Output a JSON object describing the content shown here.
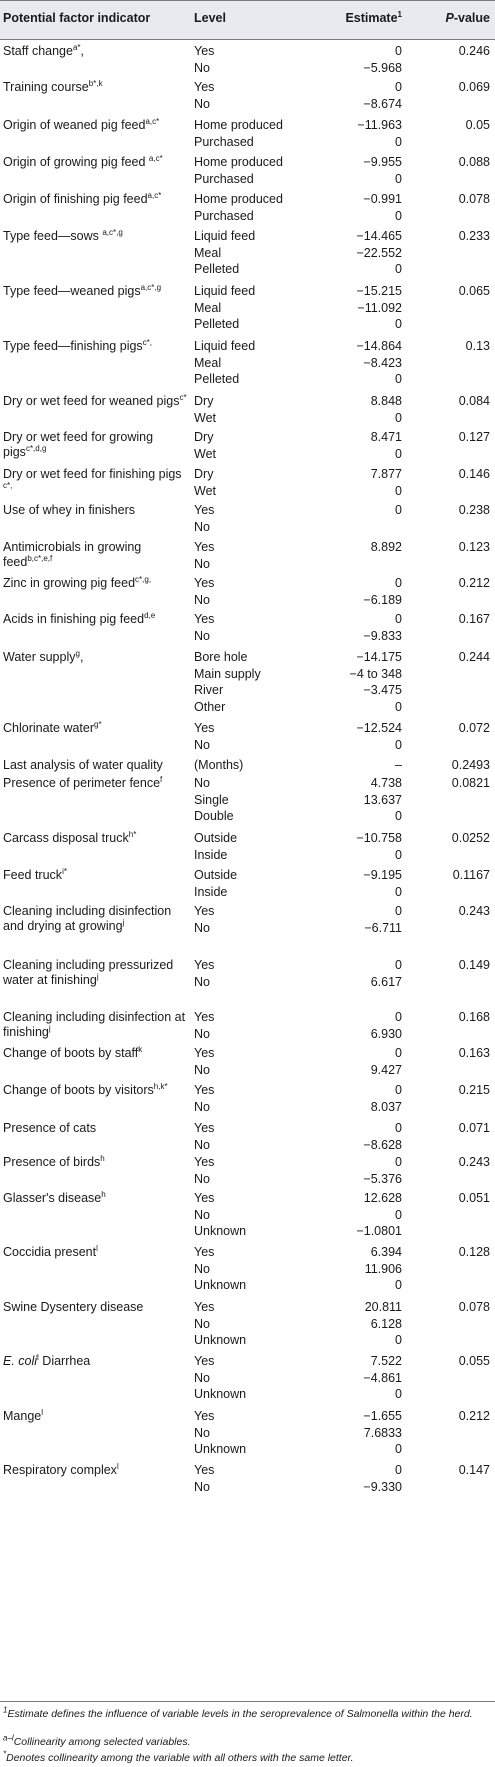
{
  "table": {
    "headers": {
      "factor": "Potential factor indicator",
      "level": "Level",
      "estimate": "Estimate",
      "estimate_sup": "1",
      "p_italic": "P",
      "p_rest": "-value"
    },
    "rows": [
      {
        "factor": "Staff change",
        "sup": "a*",
        "after": ",",
        "levels": [
          "Yes",
          "No"
        ],
        "estimates": [
          "0",
          "−5.968"
        ],
        "p": "0.246"
      },
      {
        "factor": "Training course",
        "sup": "b*,k",
        "after": "",
        "levels": [
          "Yes",
          "No"
        ],
        "estimates": [
          "0",
          "−8.674"
        ],
        "p": "0.069"
      },
      {
        "factor": "Origin of weaned pig feed",
        "sup": "a,c*",
        "after": "",
        "levels": [
          "Home produced",
          "Purchased"
        ],
        "estimates": [
          "−11.963",
          "0"
        ],
        "p": "0.05"
      },
      {
        "factor": "Origin of growing pig feed ",
        "sup": "a,c*",
        "after": "",
        "levels": [
          "Home produced",
          "Purchased"
        ],
        "estimates": [
          "−9.955",
          "0"
        ],
        "p": "0.088"
      },
      {
        "factor": "Origin of finishing pig feed",
        "sup": "a,c*",
        "after": "",
        "levels": [
          "Home produced",
          "Purchased"
        ],
        "estimates": [
          "−0.991",
          "0"
        ],
        "p": "0.078"
      },
      {
        "factor": "Type feed—sows ",
        "sup": "a,c*,g",
        "after": "",
        "levels": [
          "Liquid feed",
          "Meal",
          "Pelleted"
        ],
        "estimates": [
          "−14.465",
          "−22.552",
          "0"
        ],
        "p": "0.233"
      },
      {
        "factor": "Type feed—weaned pigs",
        "sup": "a,c*,g",
        "after": "",
        "levels": [
          "Liquid feed",
          "Meal",
          "Pelleted"
        ],
        "estimates": [
          "−15.215",
          "−11.092",
          "0"
        ],
        "p": "0.065"
      },
      {
        "factor": "Type feed—finishing pigs",
        "sup": "c*,",
        "after": "",
        "levels": [
          "Liquid feed",
          "Meal",
          "Pelleted"
        ],
        "estimates": [
          "−14.864",
          "−8.423",
          "0"
        ],
        "p": "0.13"
      },
      {
        "factor": "Dry or wet feed for weaned pigs",
        "sup": "c*",
        "after": "",
        "levels": [
          "Dry",
          "Wet"
        ],
        "estimates": [
          "8.848",
          "0"
        ],
        "p": "0.084"
      },
      {
        "factor": "Dry or wet feed for growing pigs",
        "sup": "c*,d,g",
        "after": "",
        "levels": [
          "Dry",
          "Wet"
        ],
        "estimates": [
          "8.471",
          "0"
        ],
        "p": "0.127"
      },
      {
        "factor": "Dry or wet feed for finishing pigs ",
        "sup": "c*,",
        "after": "",
        "levels": [
          "Dry",
          "Wet"
        ],
        "estimates": [
          "7.877",
          "0"
        ],
        "p": "0.146"
      },
      {
        "factor": "Use of whey in finishers",
        "sup": "",
        "after": "",
        "levels": [
          "Yes",
          "No"
        ],
        "estimates": [
          "0",
          ""
        ],
        "p": "0.238"
      },
      {
        "factor": "Antimicrobials in growing feed",
        "sup": "b,c*,e,f",
        "after": "",
        "levels": [
          "Yes",
          "No"
        ],
        "estimates": [
          "8.892",
          ""
        ],
        "p": "0.123"
      },
      {
        "factor": "Zinc in growing pig feed",
        "sup": "c*,g,",
        "after": "",
        "levels": [
          "Yes",
          "No"
        ],
        "estimates": [
          "0",
          "−6.189"
        ],
        "p": "0.212"
      },
      {
        "factor": "Acids in finishing pig feed",
        "sup": "d,e",
        "after": "",
        "levels": [
          "Yes",
          "No"
        ],
        "estimates": [
          "0",
          "−9.833"
        ],
        "p": "0.167"
      },
      {
        "factor": "Water supply",
        "sup": "g",
        "after": ",",
        "levels": [
          "Bore hole",
          "Main supply",
          "River",
          "Other"
        ],
        "estimates": [
          "−14.175",
          "−4 to 348",
          "−3.475",
          "0"
        ],
        "p": "0.244"
      },
      {
        "factor": "Chlorinate water",
        "sup": "g*",
        "after": "",
        "levels": [
          "Yes",
          "No"
        ],
        "estimates": [
          "−12.524",
          "0"
        ],
        "p": "0.072"
      },
      {
        "factor": "Last analysis of water quality",
        "sup": "",
        "after": "",
        "levels": [
          "(Months)"
        ],
        "estimates": [
          "–"
        ],
        "p": "0.2493"
      },
      {
        "factor": "Presence of perimeter fence",
        "sup": "f",
        "after": "",
        "levels": [
          "No",
          "Single",
          "Double"
        ],
        "estimates": [
          "4.738",
          "13.637",
          "0"
        ],
        "p": "0.0821"
      },
      {
        "factor": "Carcass disposal truck",
        "sup": "h*",
        "after": "",
        "levels": [
          "Outside",
          "Inside"
        ],
        "estimates": [
          "−10.758",
          "0"
        ],
        "p": "0.0252"
      },
      {
        "factor": "Feed truck",
        "sup": "i*",
        "after": "",
        "levels": [
          "Outside",
          "Inside"
        ],
        "estimates": [
          "−9.195",
          "0"
        ],
        "p": "0.1167"
      },
      {
        "factor": "Cleaning including disinfection and drying at growing",
        "sup": "j",
        "after": "",
        "levels": [
          "Yes",
          "No"
        ],
        "estimates": [
          "0",
          "−6.711"
        ],
        "p": "0.243"
      },
      {
        "factor": "Cleaning including pressurized water at finishing",
        "sup": "j",
        "after": "",
        "levels": [
          "Yes",
          "No"
        ],
        "estimates": [
          "0",
          "6.617"
        ],
        "p": "0.149"
      },
      {
        "factor": "Cleaning including disinfection at finishing",
        "sup": "j",
        "after": "",
        "levels": [
          "Yes",
          "No"
        ],
        "estimates": [
          "0",
          "6.930"
        ],
        "p": "0.168"
      },
      {
        "factor": "Change of boots by staff",
        "sup": "k",
        "after": "",
        "levels": [
          "Yes",
          "No"
        ],
        "estimates": [
          "0",
          "9.427"
        ],
        "p": "0.163"
      },
      {
        "factor": "Change of boots by visitors",
        "sup": "h,k*",
        "after": "",
        "levels": [
          "Yes",
          "No"
        ],
        "estimates": [
          "0",
          "8.037"
        ],
        "p": "0.215"
      },
      {
        "factor": "Presence of cats",
        "sup": "",
        "after": "",
        "levels": [
          "Yes",
          "No"
        ],
        "estimates": [
          "0",
          "−8.628"
        ],
        "p": "0.071"
      },
      {
        "factor": "Presence of birds",
        "sup": "h",
        "after": "",
        "levels": [
          "Yes",
          "No"
        ],
        "estimates": [
          "0",
          "−5.376"
        ],
        "p": "0.243"
      },
      {
        "factor": "Glasser's disease",
        "sup": "h",
        "after": "",
        "levels": [
          "Yes",
          "No",
          "Unknown"
        ],
        "estimates": [
          "12.628",
          "0",
          "−1.0801"
        ],
        "p": "0.051"
      },
      {
        "factor": "Coccidia present",
        "sup": "l",
        "after": "",
        "levels": [
          "Yes",
          "No",
          "Unknown"
        ],
        "estimates": [
          "6.394",
          "11.906",
          "0"
        ],
        "p": "0.128"
      },
      {
        "factor": "Swine Dysentery disease",
        "sup": "",
        "after": "",
        "levels": [
          "Yes",
          "No",
          "Unknown"
        ],
        "estimates": [
          "20.811",
          "6.128",
          "0"
        ],
        "p": "0.078"
      },
      {
        "factor": "E. coli",
        "italic": true,
        "sup": "l",
        "after": " Diarrhea",
        "levels": [
          "Yes",
          "No",
          "Unknown"
        ],
        "estimates": [
          "7.522",
          "−4.861",
          "0"
        ],
        "p": "0.055"
      },
      {
        "factor": "Mange",
        "sup": "l",
        "after": "",
        "levels": [
          "Yes",
          "No",
          "Unknown"
        ],
        "estimates": [
          "−1.655",
          "7.6833",
          "0"
        ],
        "p": "0.212"
      },
      {
        "factor": "Respiratory complex",
        "sup": "l",
        "after": "",
        "levels": [
          "Yes",
          "No"
        ],
        "estimates": [
          "0",
          "−9.330"
        ],
        "p": "0.147"
      }
    ]
  },
  "footnotes": [
    {
      "sup": "1",
      "text": "Estimate defines the influence of variable levels in the seroprevalence of Salmonella within the herd."
    },
    {
      "sup": "a–l",
      "text": "Collinearity among selected variables."
    },
    {
      "sup": "*",
      "text": "Denotes collinearity among the variable with all others with the same letter."
    }
  ]
}
